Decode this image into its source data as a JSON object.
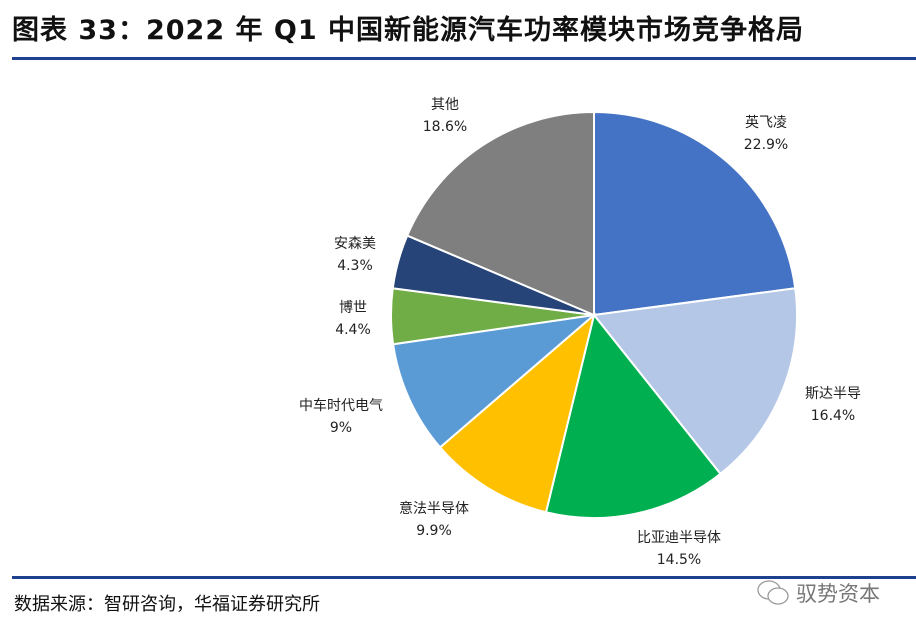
{
  "title": "图表 33：2022 年 Q1 中国新能源汽车功率模块市场竞争格局",
  "source": "数据来源：智研咨询，华福证券研究所",
  "watermark": "驭势资本",
  "chart_data": {
    "type": "pie",
    "title": "2022 年 Q1 中国新能源汽车功率模块市场竞争格局",
    "start": "12 o'clock, clockwise",
    "slices": [
      {
        "label": "英飞凌",
        "value": 22.9,
        "text": "22.9%",
        "color": "#4472C4"
      },
      {
        "label": "斯达半导",
        "value": 16.4,
        "text": "16.4%",
        "color": "#B4C7E7"
      },
      {
        "label": "比亚迪半导体",
        "value": 14.5,
        "text": "14.5%",
        "color": "#00B050"
      },
      {
        "label": "意法半导体",
        "value": 9.9,
        "text": "9.9%",
        "color": "#FFC000"
      },
      {
        "label": "中车时代电气",
        "value": 9,
        "text": "9%",
        "color": "#5B9BD5"
      },
      {
        "label": "博世",
        "value": 4.4,
        "text": "4.4%",
        "color": "#70AD47"
      },
      {
        "label": "安森美",
        "value": 4.3,
        "text": "4.3%",
        "color": "#264478"
      },
      {
        "label": "其他",
        "value": 18.6,
        "text": "18.6%",
        "color": "#7F7F7F"
      }
    ]
  }
}
